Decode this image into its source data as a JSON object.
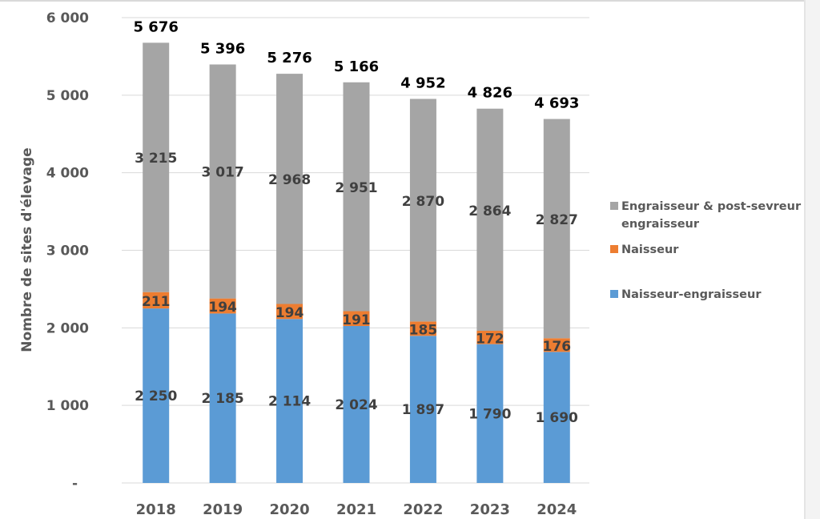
{
  "chart_data": {
    "type": "bar",
    "stacked": true,
    "title": "",
    "xlabel": "",
    "ylabel": "Nombre de sites d'élevage",
    "ylim": [
      0,
      6000
    ],
    "yticks": [
      0,
      1000,
      2000,
      3000,
      4000,
      5000,
      6000
    ],
    "ytick_labels": [
      "-",
      "1 000",
      "2 000",
      "3 000",
      "4 000",
      "5 000",
      "6 000"
    ],
    "grid": true,
    "legend_position": "right",
    "categories": [
      "2018",
      "2019",
      "2020",
      "2021",
      "2022",
      "2023",
      "2024"
    ],
    "series": [
      {
        "name": "Naisseur-engraisseur",
        "color": "#5b9bd5",
        "values": [
          2250,
          2185,
          2114,
          2024,
          1897,
          1790,
          1690
        ],
        "labels": [
          "2 250",
          "2 185",
          "2 114",
          "2 024",
          "1 897",
          "1 790",
          "1 690"
        ]
      },
      {
        "name": "Naisseur",
        "color": "#ed7d31",
        "values": [
          211,
          194,
          194,
          191,
          185,
          172,
          176
        ],
        "labels": [
          "211",
          "194",
          "194",
          "191",
          "185",
          "172",
          "176"
        ]
      },
      {
        "name": "Engraisseur & post-sevreur engraisseur",
        "color": "#a5a5a5",
        "values": [
          3215,
          3017,
          2968,
          2951,
          2870,
          2864,
          2827
        ],
        "labels": [
          "3 215",
          "3 017",
          "2 968",
          "2 951",
          "2 870",
          "2 864",
          "2 827"
        ]
      }
    ],
    "totals": [
      5676,
      5396,
      5276,
      5166,
      4952,
      4826,
      4693
    ],
    "total_labels": [
      "5 676",
      "5 396",
      "5 276",
      "5 166",
      "4 952",
      "4 826",
      "4 693"
    ],
    "legend": [
      {
        "name": "Engraisseur & post-sevreur",
        "name_line2": "engraisseur",
        "color": "#a5a5a5"
      },
      {
        "name": "Naisseur",
        "name_line2": "",
        "color": "#ed7d31"
      },
      {
        "name": "Naisseur-engraisseur",
        "name_line2": "",
        "color": "#5b9bd5"
      }
    ]
  }
}
